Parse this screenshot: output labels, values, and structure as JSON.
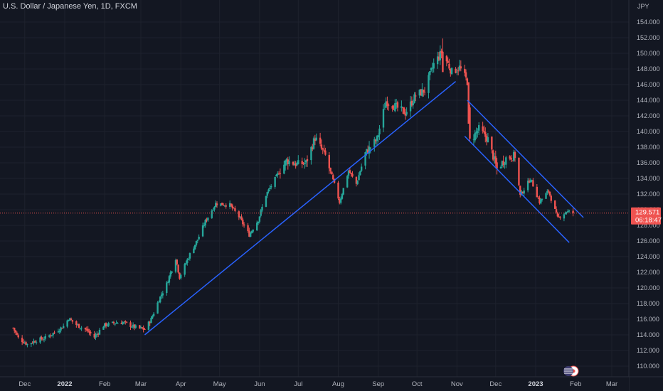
{
  "header": {
    "symbol_title": "U.S. Dollar / Japanese Yen, 1D, FXCM"
  },
  "price_axis": {
    "currency_label": "JPY",
    "tick_labels": [
      "110.000",
      "112.000",
      "114.000",
      "116.000",
      "118.000",
      "120.000",
      "122.000",
      "124.000",
      "126.000",
      "128.000",
      "130.000",
      "132.000",
      "134.000",
      "136.000",
      "138.000",
      "140.000",
      "142.000",
      "144.000",
      "146.000",
      "148.000",
      "150.000",
      "152.000",
      "154.000"
    ]
  },
  "time_axis": {
    "labels": [
      "Dec",
      "2022",
      "Feb",
      "Mar",
      "Apr",
      "May",
      "Jun",
      "Jul",
      "Aug",
      "Sep",
      "Oct",
      "Nov",
      "Dec",
      "2023",
      "Feb",
      "Mar"
    ],
    "bold_labels": [
      "2022",
      "2023"
    ]
  },
  "current_price": {
    "price": "129.571",
    "countdown": "06:18:47",
    "value": 129.571
  },
  "colors": {
    "background": "#131722",
    "up": "#26a69a",
    "down": "#ef5350",
    "trendline": "#2962ff",
    "grid": "#1e222d",
    "price_line": "#ef5350",
    "axis_text": "#b2b5be"
  },
  "icons": {
    "flag": "us-japan-flag-icon"
  },
  "chart_data": {
    "type": "candlestick",
    "title": "U.S. Dollar / Japanese Yen, 1D, FXCM",
    "y_unit": "JPY",
    "ylim": [
      109,
      155
    ],
    "y_ticks": [
      110,
      112,
      114,
      116,
      118,
      120,
      122,
      124,
      126,
      128,
      130,
      132,
      134,
      136,
      138,
      140,
      142,
      144,
      146,
      148,
      150,
      152,
      154
    ],
    "x_range": [
      "2021-11-22",
      "2023-03-20"
    ],
    "grid": true,
    "close_anchors": [
      [
        "2021-11-22",
        114.9
      ],
      [
        "2021-11-26",
        113.6
      ],
      [
        "2021-12-03",
        112.8
      ],
      [
        "2021-12-10",
        113.3
      ],
      [
        "2021-12-17",
        113.6
      ],
      [
        "2021-12-24",
        114.3
      ],
      [
        "2021-12-31",
        115.1
      ],
      [
        "2022-01-04",
        116.1
      ],
      [
        "2022-01-10",
        115.3
      ],
      [
        "2022-01-18",
        114.6
      ],
      [
        "2022-01-24",
        113.7
      ],
      [
        "2022-01-31",
        115.2
      ],
      [
        "2022-02-08",
        115.5
      ],
      [
        "2022-02-15",
        115.6
      ],
      [
        "2022-02-24",
        115.0
      ],
      [
        "2022-03-04",
        114.7
      ],
      [
        "2022-03-09",
        116.0
      ],
      [
        "2022-03-15",
        118.5
      ],
      [
        "2022-03-21",
        120.5
      ],
      [
        "2022-03-28",
        123.8
      ],
      [
        "2022-03-31",
        121.4
      ],
      [
        "2022-04-08",
        124.3
      ],
      [
        "2022-04-14",
        126.2
      ],
      [
        "2022-04-20",
        128.5
      ],
      [
        "2022-04-28",
        130.8
      ],
      [
        "2022-05-09",
        130.6
      ],
      [
        "2022-05-16",
        129.1
      ],
      [
        "2022-05-24",
        126.8
      ],
      [
        "2022-05-31",
        128.7
      ],
      [
        "2022-06-06",
        131.9
      ],
      [
        "2022-06-15",
        134.5
      ],
      [
        "2022-06-22",
        136.3
      ],
      [
        "2022-06-30",
        135.8
      ],
      [
        "2022-07-07",
        136.0
      ],
      [
        "2022-07-14",
        139.2
      ],
      [
        "2022-07-22",
        136.9
      ],
      [
        "2022-07-29",
        133.2
      ],
      [
        "2022-08-02",
        131.0
      ],
      [
        "2022-08-09",
        135.0
      ],
      [
        "2022-08-15",
        133.3
      ],
      [
        "2022-08-22",
        137.2
      ],
      [
        "2022-08-31",
        139.0
      ],
      [
        "2022-09-07",
        143.9
      ],
      [
        "2022-09-14",
        143.2
      ],
      [
        "2022-09-22",
        142.4
      ],
      [
        "2022-09-30",
        144.6
      ],
      [
        "2022-10-07",
        145.3
      ],
      [
        "2022-10-14",
        148.6
      ],
      [
        "2022-10-20",
        150.1
      ],
      [
        "2022-10-24",
        149.0
      ],
      [
        "2022-10-28",
        147.6
      ],
      [
        "2022-11-03",
        148.2
      ],
      [
        "2022-11-09",
        146.4
      ],
      [
        "2022-11-11",
        138.8
      ],
      [
        "2022-11-18",
        140.3
      ],
      [
        "2022-11-25",
        139.0
      ],
      [
        "2022-12-02",
        135.2
      ],
      [
        "2022-12-09",
        136.6
      ],
      [
        "2022-12-16",
        136.9
      ],
      [
        "2022-12-20",
        131.8
      ],
      [
        "2022-12-28",
        134.0
      ],
      [
        "2023-01-04",
        131.0
      ],
      [
        "2023-01-11",
        132.4
      ],
      [
        "2023-01-18",
        128.9
      ],
      [
        "2023-01-25",
        129.8
      ],
      [
        "2023-01-30",
        129.571
      ]
    ],
    "trendlines": [
      {
        "from": [
          "2022-03-04",
          114.0
        ],
        "to": [
          "2022-10-31",
          146.4
        ]
      },
      {
        "from": [
          "2022-11-09",
          144.0
        ],
        "to": [
          "2023-02-07",
          129.0
        ]
      },
      {
        "from": [
          "2022-11-07",
          139.4
        ],
        "to": [
          "2023-01-27",
          125.8
        ]
      }
    ]
  }
}
